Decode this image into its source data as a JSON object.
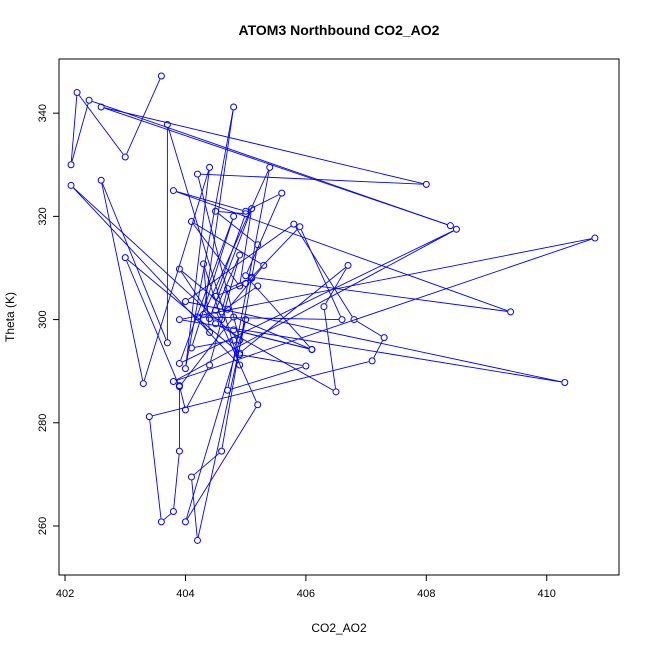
{
  "chart_data": {
    "type": "scatter",
    "title": "ATOM3 Northbound CO2_AO2",
    "xlabel": "CO2_AO2",
    "ylabel": "Theta (K)",
    "xlim": [
      401.9,
      411.2
    ],
    "ylim": [
      250.5,
      350.5
    ],
    "xticks": [
      402,
      404,
      406,
      408,
      410
    ],
    "yticks": [
      260,
      280,
      300,
      320,
      340
    ],
    "series_color": "#0000ff",
    "connected": true,
    "points": [
      [
        403.6,
        347.2
      ],
      [
        403.0,
        331.5
      ],
      [
        402.2,
        344.0
      ],
      [
        402.1,
        330.0
      ],
      [
        402.4,
        342.5
      ],
      [
        408.4,
        318.2
      ],
      [
        402.6,
        341.2
      ],
      [
        408.0,
        326.2
      ],
      [
        404.2,
        328.2
      ],
      [
        404.9,
        296.0
      ],
      [
        402.1,
        326.0
      ],
      [
        404.9,
        291.2
      ],
      [
        403.7,
        337.8
      ],
      [
        403.7,
        295.5
      ],
      [
        402.6,
        327.0
      ],
      [
        403.3,
        287.6
      ],
      [
        404.4,
        329.5
      ],
      [
        404.0,
        290.5
      ],
      [
        404.8,
        341.2
      ],
      [
        404.3,
        301.0
      ],
      [
        405.4,
        329.5
      ],
      [
        404.7,
        286.3
      ],
      [
        406.0,
        291.0
      ],
      [
        404.9,
        293.2
      ],
      [
        404.8,
        296.0
      ],
      [
        404.1,
        294.5
      ],
      [
        404.8,
        320.0
      ],
      [
        403.9,
        291.5
      ],
      [
        408.5,
        317.5
      ],
      [
        403.8,
        288.0
      ],
      [
        410.8,
        315.8
      ],
      [
        403.9,
        300.0
      ],
      [
        410.3,
        287.8
      ],
      [
        404.0,
        303.5
      ],
      [
        405.8,
        318.5
      ],
      [
        406.8,
        300.0
      ],
      [
        407.3,
        296.5
      ],
      [
        407.1,
        292.0
      ],
      [
        403.4,
        281.2
      ],
      [
        403.6,
        260.8
      ],
      [
        403.8,
        262.8
      ],
      [
        403.9,
        274.5
      ],
      [
        403.9,
        287.2
      ],
      [
        404.0,
        282.5
      ],
      [
        404.4,
        291.2
      ],
      [
        404.9,
        312.5
      ],
      [
        404.5,
        301.8
      ],
      [
        405.2,
        283.5
      ],
      [
        404.0,
        260.8
      ],
      [
        405.0,
        300.0
      ],
      [
        404.2,
        257.2
      ],
      [
        404.1,
        269.5
      ],
      [
        404.6,
        274.5
      ],
      [
        405.1,
        308.2
      ],
      [
        409.4,
        301.5
      ],
      [
        403.8,
        325.0
      ],
      [
        405.0,
        321.0
      ],
      [
        405.6,
        324.5
      ],
      [
        405.0,
        308.5
      ],
      [
        406.1,
        294.2
      ],
      [
        404.8,
        298.0
      ],
      [
        406.1,
        294.2
      ],
      [
        404.8,
        300.5
      ],
      [
        403.9,
        287.0
      ],
      [
        403.0,
        312.0
      ],
      [
        404.9,
        293.5
      ],
      [
        406.7,
        310.5
      ],
      [
        406.3,
        302.5
      ],
      [
        406.5,
        286.0
      ],
      [
        404.5,
        299.2
      ],
      [
        403.9,
        309.8
      ],
      [
        404.7,
        302.0
      ],
      [
        405.3,
        310.5
      ],
      [
        404.1,
        319.0
      ],
      [
        404.9,
        306.5
      ],
      [
        405.1,
        321.5
      ],
      [
        404.4,
        300.2
      ],
      [
        404.6,
        300.0
      ],
      [
        404.3,
        310.8
      ],
      [
        404.4,
        297.5
      ],
      [
        404.2,
        300.5
      ],
      [
        406.6,
        300.0
      ],
      [
        405.9,
        318.0
      ],
      [
        405.0,
        307.0
      ],
      [
        404.5,
        304.5
      ],
      [
        405.0,
        320.5
      ],
      [
        404.5,
        321.0
      ],
      [
        405.2,
        314.5
      ],
      [
        405.1,
        308.0
      ],
      [
        404.7,
        306.0
      ],
      [
        404.6,
        301.5
      ],
      [
        405.2,
        306.5
      ]
    ]
  }
}
